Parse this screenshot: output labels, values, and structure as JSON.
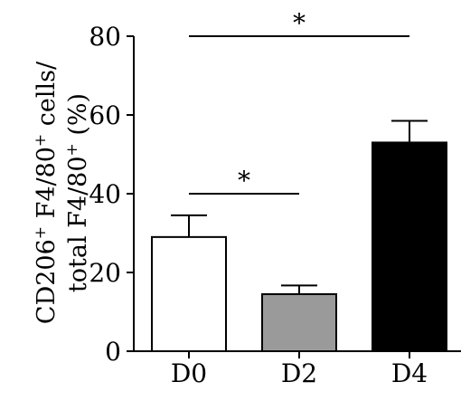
{
  "chart_data": {
    "type": "bar",
    "categories": [
      "D0",
      "D2",
      "D4"
    ],
    "values": [
      29,
      14.5,
      53
    ],
    "errors": [
      5.5,
      2.2,
      5.5
    ],
    "bar_colors": [
      "#ffffff",
      "#9a9a9a",
      "#000000"
    ],
    "ylim": [
      0,
      80
    ],
    "yticks": [
      0,
      20,
      40,
      60,
      80
    ],
    "ylabel_line1": {
      "parts": [
        {
          "t": "CD206",
          "sup": false
        },
        {
          "t": "+",
          "sup": true
        },
        {
          "t": " F4/80",
          "sup": false
        },
        {
          "t": "+",
          "sup": true
        },
        {
          "t": " cells/",
          "sup": false
        }
      ]
    },
    "ylabel_line2": {
      "parts": [
        {
          "t": "total F4/80",
          "sup": false
        },
        {
          "t": "+",
          "sup": true
        },
        {
          "t": " (%)",
          "sup": false
        }
      ]
    },
    "significance": [
      {
        "from": "D0",
        "to": "D4",
        "y": 80,
        "label": "*"
      },
      {
        "from": "D0",
        "to": "D2",
        "y": 40,
        "label": "*"
      }
    ],
    "grid": false,
    "legend": "none"
  }
}
